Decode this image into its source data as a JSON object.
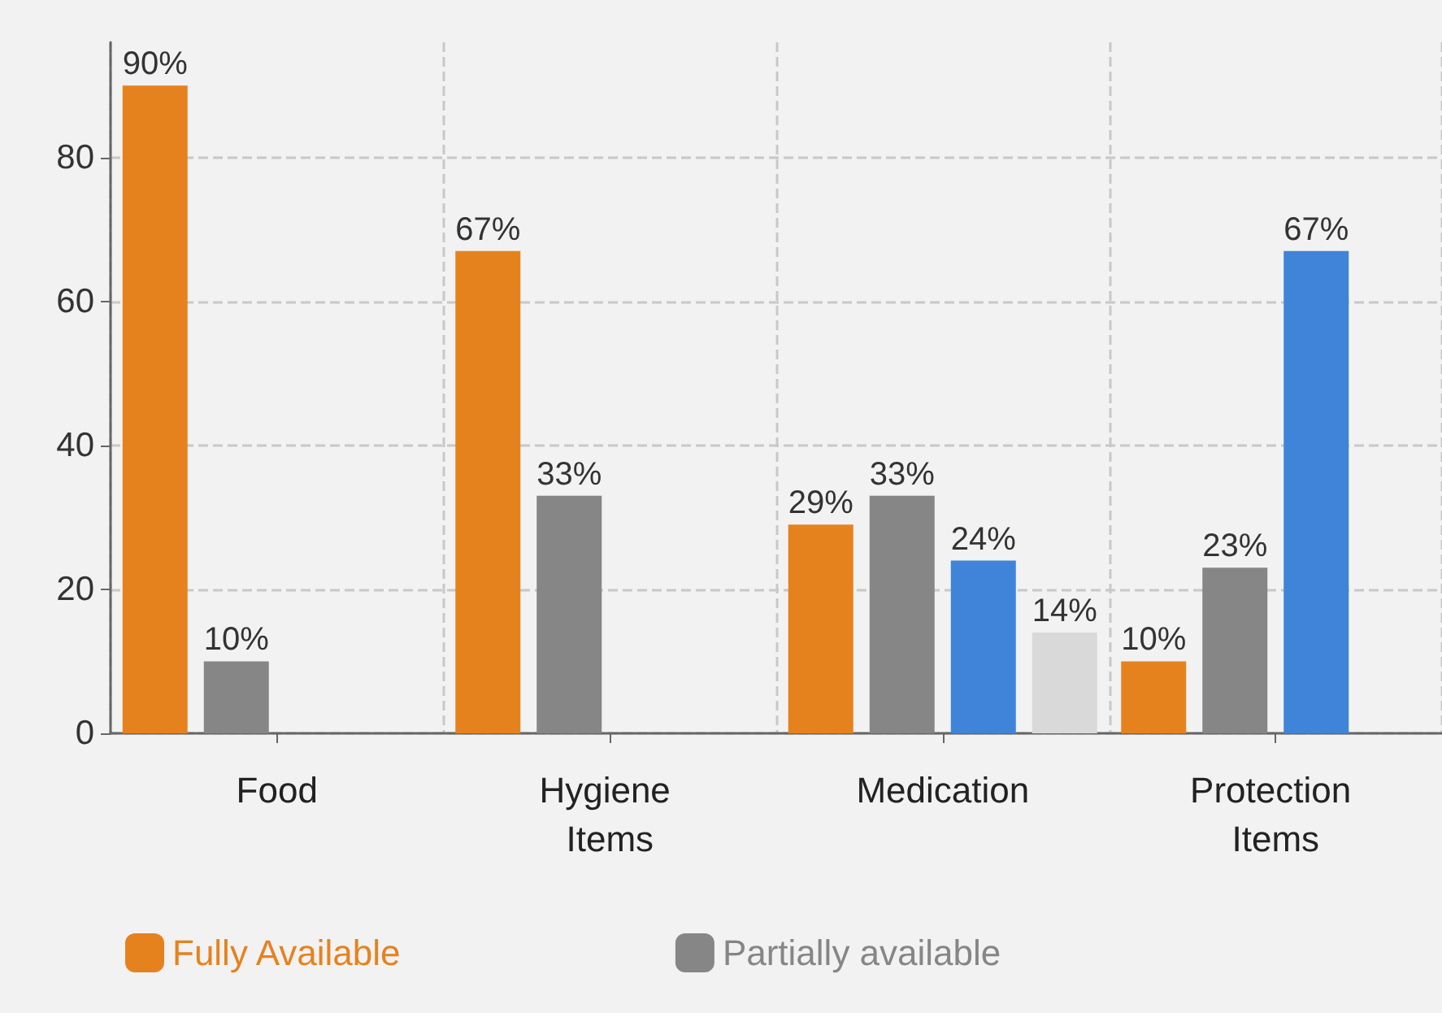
{
  "chart_data": {
    "type": "bar",
    "categories": [
      "Food",
      "Hygiene Items",
      "Medication",
      "Protection Items"
    ],
    "series": [
      {
        "name": "Fully Available",
        "color": "#e6821e",
        "values": [
          90,
          67,
          29,
          10
        ],
        "value_labels": [
          "90%",
          "67%",
          "29%",
          "10%"
        ]
      },
      {
        "name": "Partially available",
        "color": "#868686",
        "values": [
          10,
          33,
          33,
          23
        ],
        "value_labels": [
          "10%",
          "33%",
          "33%",
          "23%"
        ]
      },
      {
        "color": "#3f84d9",
        "values": [
          null,
          null,
          24,
          67
        ],
        "value_labels": [
          null,
          null,
          "24%",
          "67%"
        ]
      },
      {
        "color": "#d9d9d9",
        "values": [
          null,
          null,
          14,
          null
        ],
        "value_labels": [
          null,
          null,
          "14%",
          null
        ]
      }
    ],
    "ylim": [
      0,
      96
    ],
    "yticks": [
      0,
      20,
      40,
      60,
      80
    ],
    "grid": true,
    "legend": "bottom left"
  }
}
